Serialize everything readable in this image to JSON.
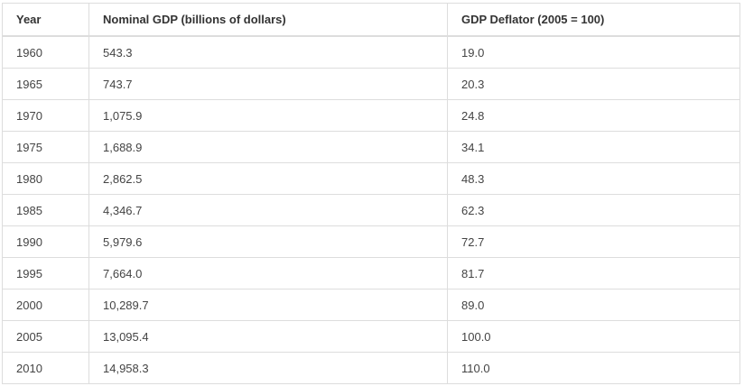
{
  "table": {
    "headers": [
      "Year",
      "Nominal GDP (billions of dollars)",
      "GDP Deflator (2005 = 100)"
    ],
    "rows": [
      [
        "1960",
        "543.3",
        "19.0"
      ],
      [
        "1965",
        "743.7",
        "20.3"
      ],
      [
        "1970",
        "1,075.9",
        "24.8"
      ],
      [
        "1975",
        "1,688.9",
        "34.1"
      ],
      [
        "1980",
        "2,862.5",
        "48.3"
      ],
      [
        "1985",
        "4,346.7",
        "62.3"
      ],
      [
        "1990",
        "5,979.6",
        "72.7"
      ],
      [
        "1995",
        "7,664.0",
        "81.7"
      ],
      [
        "2000",
        "10,289.7",
        "89.0"
      ],
      [
        "2005",
        "13,095.4",
        "100.0"
      ],
      [
        "2010",
        "14,958.3",
        "110.0"
      ]
    ]
  }
}
